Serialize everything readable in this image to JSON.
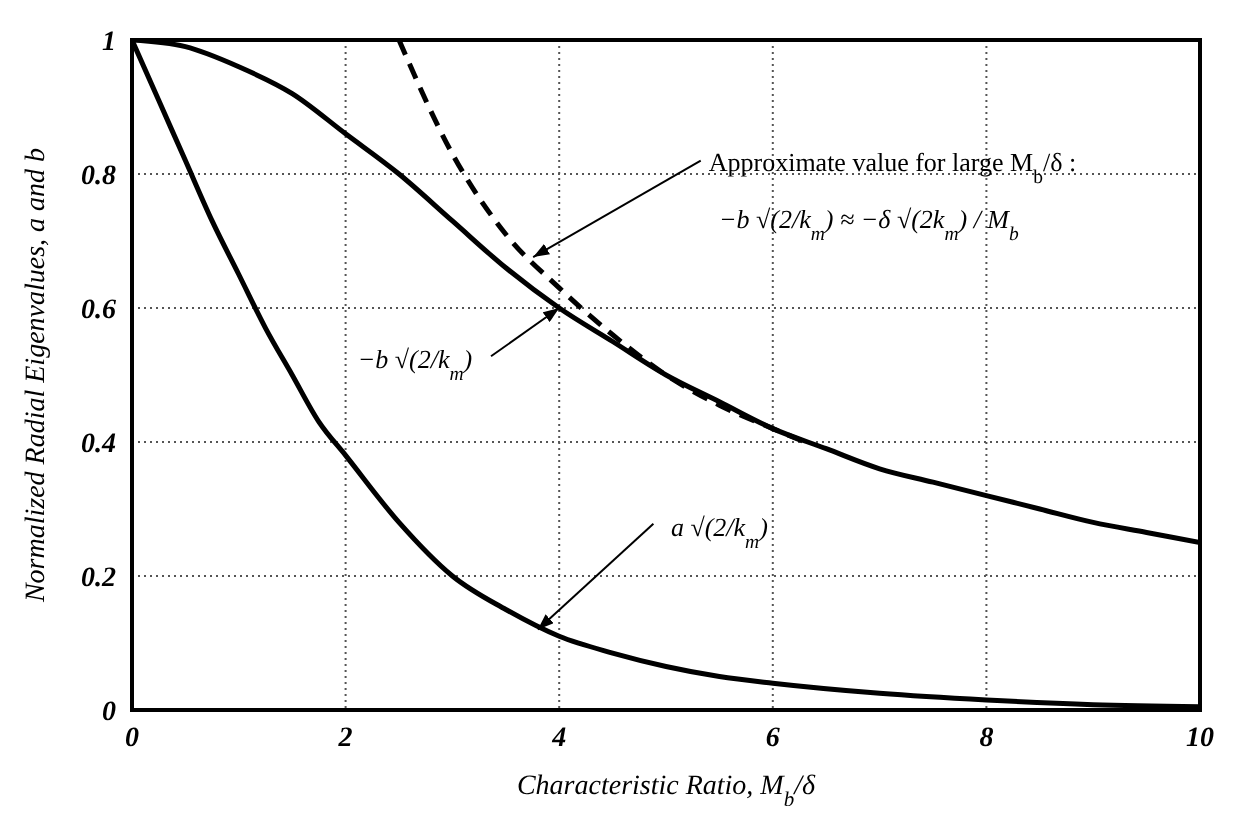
{
  "chart_data": {
    "type": "line",
    "xlabel": "Characteristic Ratio, M$_{b}$/δ",
    "ylabel": "Normalized Radial Eigenvalues, a and b",
    "xlim": [
      0,
      10
    ],
    "ylim": [
      0,
      1
    ],
    "xticks": [
      0,
      2,
      4,
      6,
      8,
      10
    ],
    "yticks": [
      0,
      0.2,
      0.4,
      0.6,
      0.8,
      1
    ],
    "grid": true,
    "legend": false,
    "marker": "none",
    "series": [
      {
        "color": "#000000",
        "line_style": "solid",
        "x": [
          0,
          0.5,
          1,
          1.5,
          2,
          2.5,
          3,
          3.5,
          4,
          4.5,
          5,
          5.5,
          6,
          6.5,
          7,
          7.5,
          8,
          8.5,
          9,
          9.5,
          10
        ],
        "values": [
          1,
          0.99,
          0.96,
          0.92,
          0.86,
          0.8,
          0.73,
          0.66,
          0.6,
          0.55,
          0.5,
          0.46,
          0.42,
          0.39,
          0.36,
          0.34,
          0.32,
          0.3,
          0.28,
          0.265,
          0.25
        ]
      },
      {
        "color": "#000000",
        "line_style": "solid",
        "x": [
          0,
          0.25,
          0.5,
          0.75,
          1,
          1.25,
          1.5,
          1.75,
          2,
          2.5,
          3,
          3.5,
          4,
          4.5,
          5,
          5.5,
          6,
          7,
          8,
          9,
          10
        ],
        "values": [
          1,
          0.91,
          0.82,
          0.73,
          0.65,
          0.57,
          0.5,
          0.43,
          0.38,
          0.28,
          0.2,
          0.15,
          0.11,
          0.085,
          0.065,
          0.05,
          0.04,
          0.025,
          0.015,
          0.008,
          0.005
        ]
      },
      {
        "color": "#000000",
        "line_style": "dashed",
        "x": [
          2.5,
          3,
          3.5,
          4,
          4.5,
          5,
          5.5,
          6,
          6.3
        ],
        "values": [
          1,
          0.83,
          0.71,
          0.63,
          0.56,
          0.5,
          0.455,
          0.42,
          0.4
        ]
      }
    ],
    "annotations": [
      {
        "text": "Approximate value for large M$_{b}$/δ :",
        "x": 3.7,
        "y": 0.67
      },
      {
        "text": "−b √(2/k$_{m}$)",
        "x": 4,
        "y": 0.6
      },
      {
        "text": "a √(2/k$_{m}$)",
        "x": 3.8,
        "y": 0.12
      },
      "−b √(2/k$_{m}$) ≈ −δ √(2k$_{m}$) / M$_{b}$"
    ]
  }
}
